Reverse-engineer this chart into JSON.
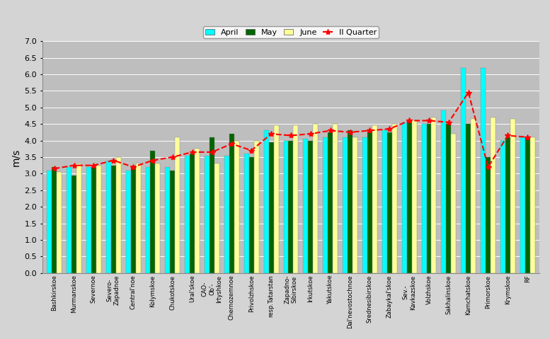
{
  "categories": [
    "Bashkirskoe",
    "Murmanskoe",
    "Severnoe",
    "Severo-\nZapadnoe",
    "Central'noe",
    "Kolymskoe",
    "Chukotskoe",
    "Ural'skoe",
    "CAO-\nOb'-\nIrtyshkoe",
    "Chernozemnoe",
    "Privolzhskoe",
    "resp.Tatarstan",
    "Zapadno-\nSibirskoe",
    "Irkutskoe",
    "Yakutskoe",
    "Dal'nevostochnoe",
    "Srednesibirskoe",
    "Zabaykal'skoe",
    "Sev.-\nKavkazskoe",
    "Volzhskoe",
    "Sakhalinskoe",
    "Kamchatskoe",
    "Primorskoe",
    "Krymskoe",
    "RF"
  ],
  "april": [
    3.1,
    3.2,
    3.2,
    3.4,
    3.1,
    3.2,
    3.2,
    3.55,
    3.55,
    3.55,
    3.6,
    4.3,
    4.0,
    4.05,
    4.1,
    4.1,
    4.1,
    4.3,
    4.55,
    4.5,
    4.9,
    6.2,
    6.2,
    4.0,
    4.1
  ],
  "may": [
    3.2,
    2.95,
    3.2,
    3.25,
    3.2,
    3.7,
    3.1,
    3.6,
    4.1,
    4.2,
    3.5,
    3.95,
    4.0,
    4.0,
    4.25,
    4.3,
    4.3,
    4.25,
    4.6,
    4.5,
    4.5,
    4.5,
    3.5,
    4.1,
    4.1
  ],
  "june": [
    3.05,
    3.3,
    3.25,
    3.5,
    3.3,
    3.3,
    4.1,
    3.75,
    3.3,
    4.0,
    4.0,
    4.45,
    4.45,
    4.5,
    4.5,
    4.1,
    4.45,
    4.5,
    4.6,
    4.7,
    4.2,
    4.65,
    4.7,
    4.65,
    4.1
  ],
  "ii_quarter": [
    3.15,
    3.25,
    3.25,
    3.4,
    3.2,
    3.4,
    3.5,
    3.65,
    3.65,
    3.9,
    3.7,
    4.2,
    4.15,
    4.2,
    4.3,
    4.25,
    4.3,
    4.35,
    4.6,
    4.6,
    4.55,
    5.45,
    3.2,
    4.15,
    4.1
  ],
  "color_april": "#00FFFF",
  "color_may": "#006400",
  "color_june": "#FFFF99",
  "color_ii_quarter_line": "#FF0000",
  "ylabel": "m/s",
  "ylim": [
    0,
    7
  ],
  "yticks": [
    0,
    0.5,
    1.0,
    1.5,
    2.0,
    2.5,
    3.0,
    3.5,
    4.0,
    4.5,
    5.0,
    5.5,
    6.0,
    6.5,
    7.0
  ],
  "background_color": "#BEBEBE",
  "figure_facecolor": "#D4D4D4",
  "legend_labels": [
    "April",
    "May",
    "June",
    "II Quarter"
  ],
  "bar_width": 0.25,
  "figsize": [
    7.77,
    4.79
  ],
  "dpi": 100
}
